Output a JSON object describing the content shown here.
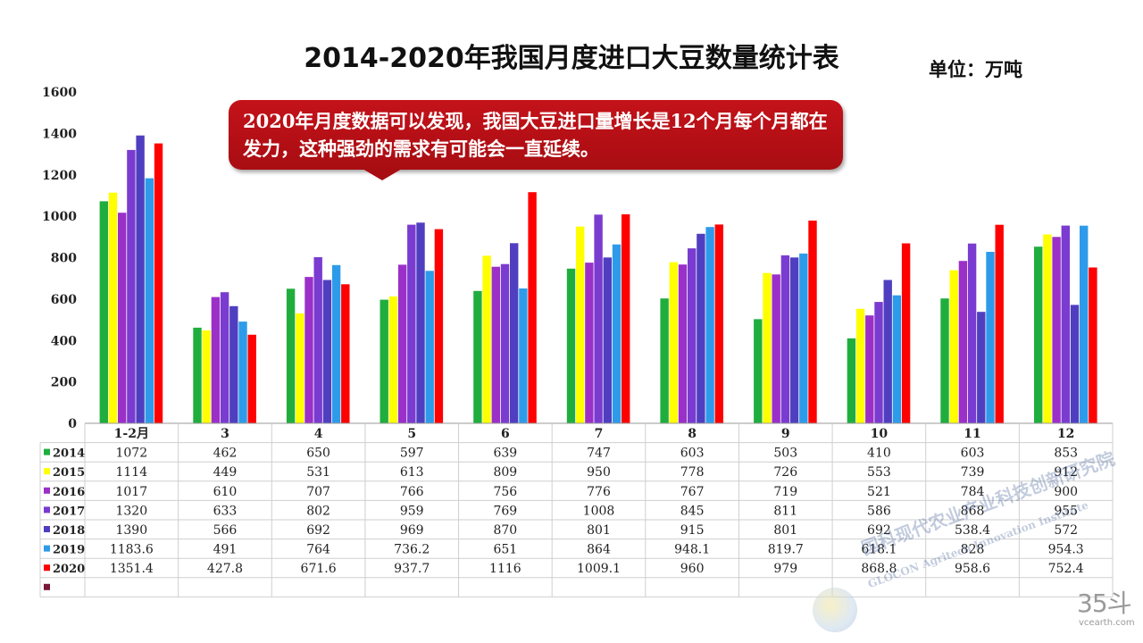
{
  "unit_label": "单位：万吨",
  "callout": "2020年月度数据可以发现，我国大豆进口量增长是12个月每个月都在发力，这种强劲的需求有可能会一直延续。",
  "watermark": {
    "main": "国科现代农业产业科技创新研究院",
    "sub": "GLOCON Agritech Innovation Institute",
    "site_logo": "35斗",
    "site_url": "vcearth.com"
  },
  "chart_data": {
    "type": "bar",
    "title": "2014-2020年我国月度进口大豆数量统计表",
    "ylim": [
      0,
      1600
    ],
    "yticks": [
      "0",
      "200",
      "400",
      "600",
      "800",
      "1000",
      "1200",
      "1400",
      "1600"
    ],
    "categories": [
      "1-2月",
      "3",
      "4",
      "5",
      "6",
      "7",
      "8",
      "9",
      "10",
      "11",
      "12"
    ],
    "series": [
      {
        "name": "2014",
        "color": "#1fae3e",
        "values": [
          1072,
          462,
          650,
          597,
          639,
          747,
          603,
          503,
          410,
          603,
          853
        ],
        "labels": [
          "1072",
          "462",
          "650",
          "597",
          "639",
          "747",
          "603",
          "503",
          "410",
          "603",
          "853"
        ]
      },
      {
        "name": "2015",
        "color": "#ffff00",
        "values": [
          1114,
          449,
          531,
          613,
          809,
          950,
          778,
          726,
          553,
          739,
          912
        ],
        "labels": [
          "1114",
          "449",
          "531",
          "613",
          "809",
          "950",
          "778",
          "726",
          "553",
          "739",
          "912"
        ]
      },
      {
        "name": "2016",
        "color": "#9b30c8",
        "values": [
          1017,
          610,
          707,
          766,
          756,
          776,
          767,
          719,
          521,
          784,
          900
        ],
        "labels": [
          "1017",
          "610",
          "707",
          "766",
          "756",
          "776",
          "767",
          "719",
          "521",
          "784",
          "900"
        ]
      },
      {
        "name": "2017",
        "color": "#7a3bd0",
        "values": [
          1320,
          633,
          802,
          959,
          769,
          1008,
          845,
          811,
          586,
          868,
          955
        ],
        "labels": [
          "1320",
          "633",
          "802",
          "959",
          "769",
          "1008",
          "845",
          "811",
          "586",
          "868",
          "955"
        ]
      },
      {
        "name": "2018",
        "color": "#4f3fc0",
        "values": [
          1390,
          566,
          692,
          969,
          870,
          801,
          915,
          801,
          692,
          538.4,
          572
        ],
        "labels": [
          "1390",
          "566",
          "692",
          "969",
          "870",
          "801",
          "915",
          "801",
          "692",
          "538.4",
          "572"
        ]
      },
      {
        "name": "2019",
        "color": "#2e9bea",
        "values": [
          1183.6,
          491,
          764,
          736.2,
          651,
          864,
          948.1,
          819.7,
          618.1,
          828,
          954.3
        ],
        "labels": [
          "1183.6",
          "491",
          "764",
          "736.2",
          "651",
          "864",
          "948.1",
          "819.7",
          "618.1",
          "828",
          "954.3"
        ]
      },
      {
        "name": "2020",
        "color": "#ff0000",
        "values": [
          1351.4,
          427.8,
          671.6,
          937.7,
          1116,
          1009.1,
          960,
          979,
          868.8,
          958.6,
          752.4
        ],
        "labels": [
          "1351.4",
          "427.8",
          "671.6",
          "937.7",
          "1116",
          "1009.1",
          "960",
          "979",
          "868.8",
          "958.6",
          "752.4"
        ]
      }
    ],
    "extra_legend_color": "#7a1638"
  }
}
